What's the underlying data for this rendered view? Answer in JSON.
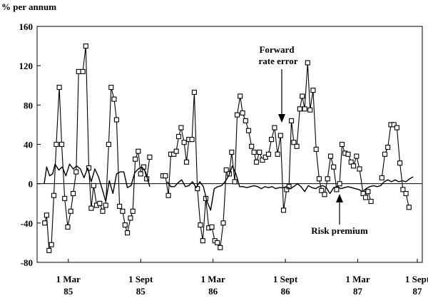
{
  "chart_data": {
    "type": "line",
    "title": "",
    "y_unit_label": "% per annum",
    "xlabel": "",
    "ylabel": "",
    "ylim": [
      -80,
      160
    ],
    "yticks": [
      "160",
      "120",
      "80",
      "40",
      "0",
      "-40",
      "-80"
    ],
    "xlim": [
      0,
      31
    ],
    "x_unit": "months since Jan 1985",
    "xticks": [
      {
        "x": 2,
        "month": "1 Mar",
        "year": "85"
      },
      {
        "x": 8,
        "month": "1 Sept",
        "year": "85"
      },
      {
        "x": 14,
        "month": "1 Mar",
        "year": "86"
      },
      {
        "x": 20,
        "month": "1 Sept",
        "year": "86"
      },
      {
        "x": 26,
        "month": "1 Mar",
        "year": "87"
      },
      {
        "x": 32,
        "month": "1 Sept",
        "year": "87"
      }
    ],
    "grid": false,
    "annotations": [
      {
        "text_lines": [
          "Forward",
          "rate error"
        ],
        "target": "forward_rate_error"
      },
      {
        "text_lines": [
          "Risk premium"
        ],
        "target": "risk_premium"
      }
    ],
    "series": [
      {
        "name": "Forward rate error",
        "marker": "square",
        "segments": [
          [
            [
              0.05,
              -40
            ],
            [
              0.2,
              -32
            ],
            [
              0.4,
              -68
            ],
            [
              0.6,
              -62
            ],
            [
              0.8,
              -12
            ],
            [
              1.0,
              40
            ],
            [
              1.25,
              98
            ],
            [
              1.45,
              40
            ],
            [
              1.7,
              -15
            ],
            [
              1.95,
              -44
            ],
            [
              2.2,
              -28
            ],
            [
              2.4,
              -10
            ],
            [
              2.65,
              12
            ],
            [
              2.85,
              114
            ],
            [
              3.2,
              114
            ],
            [
              3.45,
              140
            ],
            [
              3.7,
              16
            ],
            [
              3.9,
              -25
            ],
            [
              4.1,
              -2
            ],
            [
              4.35,
              -22
            ],
            [
              4.6,
              -20
            ],
            [
              4.85,
              -28
            ],
            [
              5.1,
              -22
            ],
            [
              5.35,
              40
            ],
            [
              5.55,
              98
            ],
            [
              5.8,
              86
            ],
            [
              6.0,
              65
            ],
            [
              6.25,
              -23
            ],
            [
              6.5,
              -28
            ],
            [
              6.7,
              -42
            ],
            [
              6.9,
              -50
            ],
            [
              7.15,
              -35
            ],
            [
              7.35,
              -28
            ],
            [
              7.55,
              25
            ],
            [
              7.8,
              33
            ],
            [
              8.0,
              10
            ],
            [
              8.25,
              17
            ],
            [
              8.5,
              5
            ],
            [
              8.75,
              27
            ]
          ],
          [
            [
              9.85,
              8
            ],
            [
              10.05,
              8
            ],
            [
              10.3,
              -12
            ],
            [
              10.5,
              30
            ],
            [
              10.75,
              30
            ],
            [
              10.95,
              33
            ],
            [
              11.15,
              48
            ],
            [
              11.35,
              57
            ],
            [
              11.6,
              42
            ],
            [
              11.8,
              22
            ],
            [
              12.0,
              45
            ],
            [
              12.25,
              45
            ],
            [
              12.45,
              93
            ],
            [
              12.7,
              -5
            ],
            [
              12.95,
              -42
            ],
            [
              13.15,
              -58
            ],
            [
              13.4,
              -15
            ],
            [
              13.65,
              -45
            ],
            [
              13.9,
              -44
            ],
            [
              14.15,
              -58
            ],
            [
              14.35,
              -60
            ],
            [
              14.6,
              -65
            ],
            [
              14.85,
              -40
            ],
            [
              15.1,
              14
            ],
            [
              15.35,
              10
            ],
            [
              15.55,
              32
            ],
            [
              15.8,
              2
            ],
            [
              16.0,
              70
            ],
            [
              16.25,
              89
            ],
            [
              16.45,
              72
            ],
            [
              16.7,
              64
            ],
            [
              16.95,
              54
            ],
            [
              17.2,
              38
            ],
            [
              17.4,
              32
            ],
            [
              17.6,
              22
            ],
            [
              17.85,
              32
            ],
            [
              18.1,
              24
            ],
            [
              18.35,
              27
            ],
            [
              18.6,
              30
            ],
            [
              18.85,
              45
            ],
            [
              19.1,
              57
            ],
            [
              19.35,
              30
            ],
            [
              19.6,
              49
            ],
            [
              19.85,
              -27
            ],
            [
              20.1,
              -6
            ],
            [
              20.3,
              -3
            ],
            [
              20.5,
              64
            ],
            [
              20.7,
              42
            ],
            [
              20.95,
              38
            ],
            [
              21.2,
              76
            ],
            [
              21.4,
              89
            ],
            [
              21.6,
              76
            ],
            [
              21.85,
              123
            ],
            [
              22.05,
              75
            ],
            [
              22.3,
              95
            ],
            [
              22.55,
              35
            ],
            [
              22.8,
              5
            ],
            [
              23.0,
              -7
            ],
            [
              23.25,
              -11
            ],
            [
              23.5,
              5
            ],
            [
              23.75,
              28
            ],
            [
              24.0,
              17
            ],
            [
              24.25,
              -6
            ],
            [
              24.5,
              0
            ],
            [
              24.7,
              40
            ],
            [
              24.95,
              31
            ],
            [
              25.2,
              30
            ],
            [
              25.45,
              22
            ],
            [
              25.65,
              18
            ],
            [
              25.9,
              28
            ],
            [
              26.15,
              15
            ],
            [
              26.45,
              -10
            ],
            [
              26.65,
              -14
            ],
            [
              26.85,
              -8
            ],
            [
              27.1,
              -18
            ]
          ],
          [
            [
              28.0,
              6
            ],
            [
              28.25,
              30
            ],
            [
              28.5,
              37
            ],
            [
              28.75,
              60
            ],
            [
              29.0,
              60
            ],
            [
              29.25,
              57
            ],
            [
              29.5,
              21
            ],
            [
              29.75,
              -6
            ],
            [
              30.0,
              -10
            ],
            [
              30.25,
              -24
            ]
          ]
        ]
      },
      {
        "name": "Risk premium",
        "marker": "none",
        "segments": [
          [
            [
              0.0,
              0
            ],
            [
              0.2,
              17
            ],
            [
              0.45,
              8
            ],
            [
              0.7,
              10
            ],
            [
              0.9,
              20
            ],
            [
              1.2,
              14
            ],
            [
              1.5,
              17
            ],
            [
              1.8,
              8
            ],
            [
              2.1,
              20
            ],
            [
              2.4,
              15
            ],
            [
              2.7,
              18
            ],
            [
              3.0,
              15
            ],
            [
              3.3,
              6
            ],
            [
              3.6,
              16
            ],
            [
              3.9,
              2
            ],
            [
              4.2,
              15
            ],
            [
              4.5,
              7
            ],
            [
              4.8,
              -5
            ],
            [
              5.1,
              -18
            ],
            [
              5.4,
              3
            ],
            [
              5.7,
              -10
            ],
            [
              6.0,
              10
            ],
            [
              6.3,
              12
            ],
            [
              6.6,
              12
            ],
            [
              6.9,
              -4
            ],
            [
              7.2,
              -2
            ],
            [
              7.5,
              11
            ],
            [
              7.8,
              15
            ],
            [
              8.1,
              17
            ],
            [
              8.4,
              12
            ],
            [
              8.75,
              -3
            ]
          ],
          [
            [
              10.2,
              2
            ],
            [
              10.5,
              -3
            ],
            [
              10.8,
              -3
            ],
            [
              11.1,
              1
            ],
            [
              11.4,
              4
            ],
            [
              11.7,
              -3
            ],
            [
              12.0,
              -2
            ],
            [
              12.3,
              2
            ],
            [
              12.6,
              -4
            ],
            [
              12.9,
              2
            ],
            [
              13.2,
              -3
            ],
            [
              13.5,
              -18
            ],
            [
              13.8,
              -27
            ],
            [
              14.1,
              -5
            ],
            [
              14.4,
              -3
            ],
            [
              14.7,
              -2
            ],
            [
              15.0,
              2
            ],
            [
              15.3,
              8
            ],
            [
              15.6,
              18
            ],
            [
              15.9,
              10
            ],
            [
              16.2,
              -3
            ],
            [
              16.5,
              -3
            ],
            [
              16.8,
              -4
            ],
            [
              17.1,
              -3
            ],
            [
              17.4,
              -2
            ],
            [
              17.7,
              -3
            ],
            [
              18.0,
              -5
            ],
            [
              18.3,
              -3
            ],
            [
              18.6,
              -4
            ],
            [
              18.9,
              -3
            ],
            [
              19.2,
              -5
            ],
            [
              19.5,
              -4
            ],
            [
              19.8,
              -4
            ],
            [
              20.1,
              -3
            ],
            [
              20.4,
              -5
            ],
            [
              20.7,
              -3
            ],
            [
              21.0,
              0
            ],
            [
              21.3,
              -3
            ],
            [
              21.6,
              -8
            ],
            [
              21.9,
              -2
            ],
            [
              22.2,
              -4
            ],
            [
              22.5,
              -5
            ],
            [
              22.8,
              -3
            ],
            [
              23.1,
              -2
            ],
            [
              23.4,
              -4
            ],
            [
              23.7,
              -10
            ],
            [
              24.0,
              -4
            ],
            [
              24.3,
              -3
            ],
            [
              24.6,
              -5
            ],
            [
              24.9,
              -4
            ],
            [
              25.2,
              -3
            ],
            [
              25.5,
              -4
            ],
            [
              25.8,
              -5
            ],
            [
              26.1,
              -6
            ],
            [
              26.4,
              -8
            ],
            [
              26.7,
              -5
            ],
            [
              27.0,
              -3
            ],
            [
              27.3,
              -2
            ],
            [
              27.6,
              -3
            ],
            [
              27.9,
              -2
            ],
            [
              28.2,
              2
            ],
            [
              28.5,
              4
            ],
            [
              28.8,
              2
            ],
            [
              29.1,
              4
            ],
            [
              29.4,
              2
            ],
            [
              29.7,
              3
            ],
            [
              30.0,
              2
            ],
            [
              30.3,
              5
            ],
            [
              30.6,
              7
            ]
          ]
        ]
      }
    ]
  }
}
